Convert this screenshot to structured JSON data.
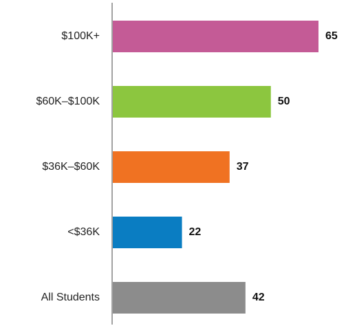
{
  "chart_data": {
    "type": "barh",
    "categories": [
      "$100K+",
      "$60K–$100K",
      "$36K–$60K",
      "<$36K",
      "All Students"
    ],
    "values": [
      65,
      50,
      37,
      22,
      42
    ],
    "colors": [
      "#c45b96",
      "#8cc63f",
      "#f07222",
      "#0a7dc2",
      "#8c8c8c"
    ]
  }
}
